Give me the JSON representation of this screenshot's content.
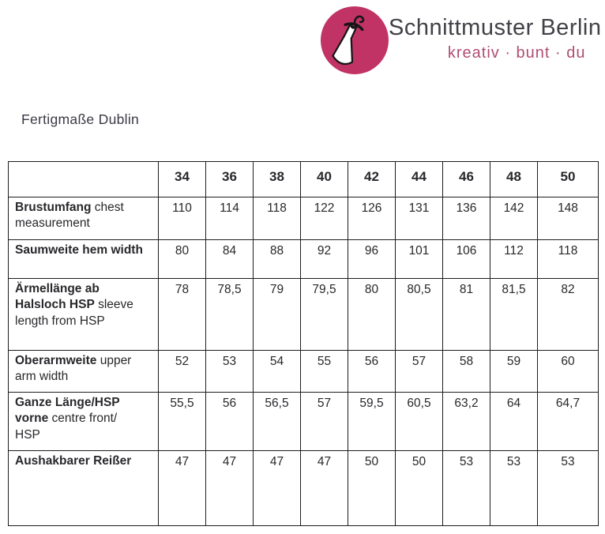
{
  "brand": {
    "name": "Schnittmuster Berlin",
    "tagline": "kreativ · bunt · du",
    "logo_icon": "dress-on-hanger-icon"
  },
  "colors": {
    "logo_circle": "#c23365",
    "tagline_pink": "#b04d72",
    "brand_gray": "#414147",
    "table_border": "#1d1d1f"
  },
  "page": {
    "title": "Fertigmaße Dublin"
  },
  "chart_data": {
    "type": "table",
    "title": "Fertigmaße Dublin",
    "columns": [
      "",
      "34",
      "36",
      "38",
      "40",
      "42",
      "44",
      "46",
      "48",
      "50"
    ],
    "rows": [
      {
        "label_de": "Brustumfang",
        "label_en": "chest measurement",
        "en_bold": false,
        "values": [
          "110",
          "114",
          "118",
          "122",
          "126",
          "131",
          "136",
          "142",
          "148"
        ]
      },
      {
        "label_de": "Saumweite",
        "label_en": "hem width",
        "en_bold": true,
        "values": [
          "80",
          "84",
          "88",
          "92",
          "96",
          "101",
          "106",
          "112",
          "118"
        ]
      },
      {
        "label_de": "Ärmellänge ab Halsloch HSP",
        "label_en": "sleeve length  from HSP",
        "en_bold": false,
        "values": [
          "78",
          "78,5",
          "79",
          "79,5",
          "80",
          "80,5",
          "81",
          "81,5",
          "82"
        ]
      },
      {
        "label_de": "Oberarmweite",
        "label_en": "upper arm width",
        "en_bold": false,
        "values": [
          "52",
          "53",
          "54",
          "55",
          "56",
          "57",
          "58",
          "59",
          "60"
        ]
      },
      {
        "label_de": "Ganze Länge/HSP vorne",
        "label_en": "centre front/ HSP",
        "en_bold": false,
        "values": [
          "55,5",
          "56",
          "56,5",
          "57",
          "59,5",
          "60,5",
          "63,2",
          "64",
          "64,7"
        ]
      },
      {
        "label_de": "Aushakbarer Reißer",
        "label_en": "",
        "en_bold": false,
        "values": [
          "47",
          "47",
          "47",
          "47",
          "50",
          "50",
          "53",
          "53",
          "53"
        ]
      }
    ]
  }
}
